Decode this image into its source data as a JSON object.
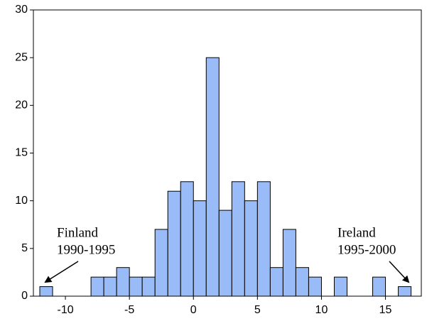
{
  "chart_data": {
    "type": "histogram",
    "bins": [
      -12,
      -11,
      -10,
      -9,
      -8,
      -7,
      -6,
      -5,
      -4,
      -3,
      -2,
      -1,
      0,
      1,
      2,
      3,
      4,
      5,
      6,
      7,
      8,
      9,
      10,
      11,
      12,
      13,
      14,
      15,
      16,
      17
    ],
    "values": [
      1,
      0,
      0,
      0,
      2,
      2,
      3,
      2,
      2,
      7,
      11,
      12,
      10,
      25,
      9,
      12,
      10,
      12,
      3,
      7,
      3,
      2,
      0,
      2,
      0,
      0,
      2,
      0,
      1
    ],
    "color": "#99bbf7",
    "xlim": [
      -12.5,
      17.8
    ],
    "xticks": [
      -10,
      -5,
      0,
      5,
      10,
      15
    ],
    "ylim": [
      0,
      30
    ],
    "yticks": [
      0,
      5,
      10,
      15,
      20,
      25,
      30
    ],
    "annotations": [
      {
        "lines": [
          "Finland",
          "1990-1995"
        ]
      },
      {
        "lines": [
          "Ireland",
          "1995-2000"
        ]
      }
    ]
  }
}
